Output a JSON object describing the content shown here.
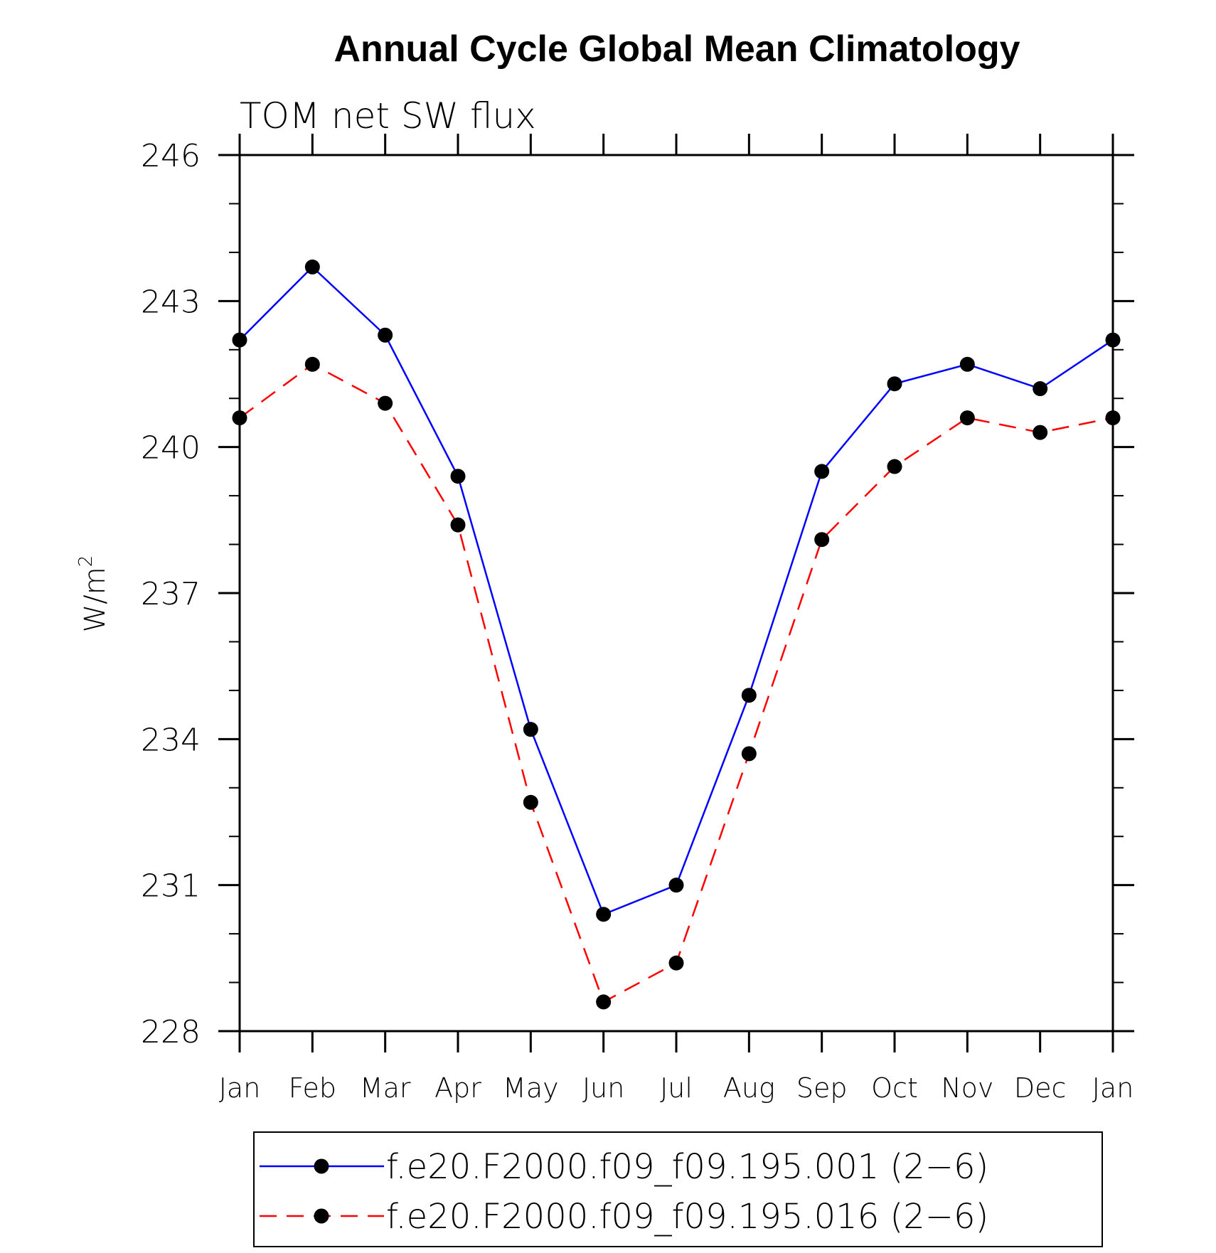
{
  "chart_data": {
    "type": "line",
    "title": "Annual Cycle Global Mean Climatology",
    "subtitle": "TOM net SW flux",
    "ylabel": "W/m",
    "ylabel_superscript": "2",
    "xlabel": "",
    "categories": [
      "Jan",
      "Feb",
      "Mar",
      "Apr",
      "May",
      "Jun",
      "Jul",
      "Aug",
      "Sep",
      "Oct",
      "Nov",
      "Dec",
      "Jan"
    ],
    "ylim": [
      228,
      246
    ],
    "yticks": [
      228,
      231,
      234,
      237,
      240,
      243,
      246
    ],
    "yticks_labels": [
      "228",
      "231",
      "234",
      "237",
      "240",
      "243",
      "246"
    ],
    "grid": false,
    "legend_position": "bottom",
    "series": [
      {
        "name": "f.e20.F2000.f09_f09.195.001 (2−6)",
        "color": "#0000ff",
        "line_style": "solid",
        "marker": "filled-circle",
        "values": [
          242.2,
          243.7,
          242.3,
          239.4,
          234.2,
          230.4,
          231.0,
          234.9,
          239.5,
          241.3,
          241.7,
          241.2,
          242.2
        ]
      },
      {
        "name": "f.e20.F2000.f09_f09.195.016 (2−6)",
        "color": "#ff0000",
        "line_style": "dashed",
        "marker": "filled-circle",
        "values": [
          240.6,
          241.7,
          240.9,
          238.4,
          232.7,
          228.6,
          229.4,
          233.7,
          238.1,
          239.6,
          240.6,
          240.3,
          240.6
        ]
      }
    ]
  }
}
